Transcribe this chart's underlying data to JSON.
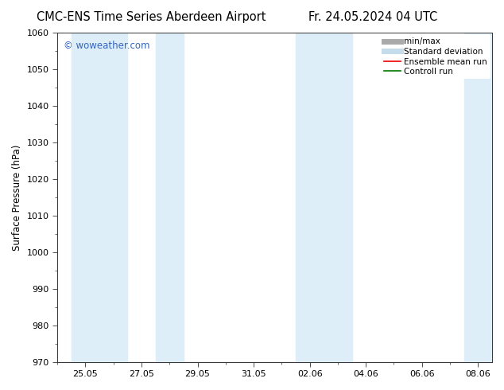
{
  "title_left": "CMC-ENS Time Series Aberdeen Airport",
  "title_right": "Fr. 24.05.2024 04 UTC",
  "ylabel": "Surface Pressure (hPa)",
  "ylim": [
    970,
    1060
  ],
  "yticks": [
    970,
    980,
    990,
    1000,
    1010,
    1020,
    1030,
    1040,
    1050,
    1060
  ],
  "xlim": [
    0,
    15.5
  ],
  "xtick_labels": [
    "25.05",
    "27.05",
    "29.05",
    "31.05",
    "02.06",
    "04.06",
    "06.06",
    "08.06"
  ],
  "xtick_positions": [
    1,
    3,
    5,
    7,
    9,
    11,
    13,
    15
  ],
  "shaded_bands": [
    {
      "x_start": 0.5,
      "x_end": 2.5,
      "color": "#ddeef8"
    },
    {
      "x_start": 3.5,
      "x_end": 4.5,
      "color": "#ddeef8"
    },
    {
      "x_start": 8.5,
      "x_end": 10.5,
      "color": "#ddeef8"
    },
    {
      "x_start": 14.5,
      "x_end": 15.5,
      "color": "#ddeef8"
    }
  ],
  "background_color": "#ffffff",
  "plot_bg_color": "#ffffff",
  "legend_items": [
    {
      "label": "min/max",
      "color": "#aaaaaa",
      "lw": 5
    },
    {
      "label": "Standard deviation",
      "color": "#c5dcea",
      "lw": 5
    },
    {
      "label": "Ensemble mean run",
      "color": "#ee0000",
      "lw": 1.2
    },
    {
      "label": "Controll run",
      "color": "#007700",
      "lw": 1.2
    }
  ],
  "watermark": "© woweather.com",
  "watermark_color": "#3366cc",
  "title_fontsize": 10.5,
  "ylabel_fontsize": 8.5,
  "tick_fontsize": 8,
  "legend_fontsize": 7.5
}
